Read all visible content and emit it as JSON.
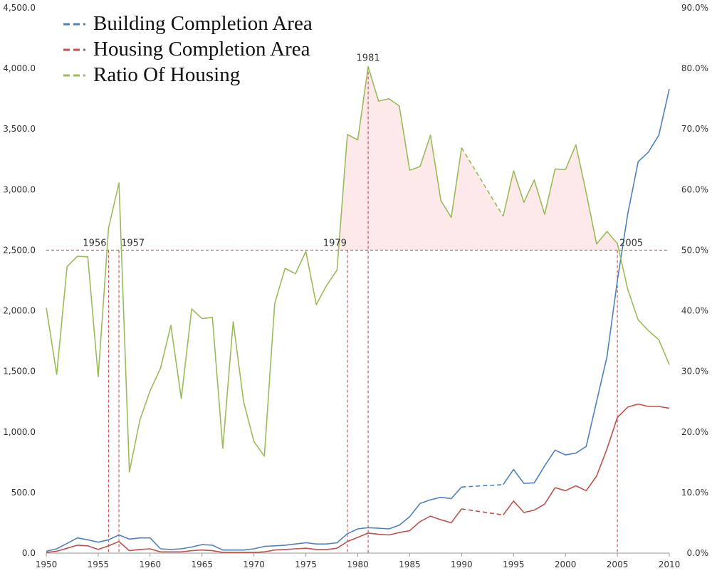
{
  "chart_data": {
    "type": "line",
    "title": "",
    "xlabel": "",
    "ylabel": "",
    "y2label": "",
    "xlim": [
      1950,
      2010
    ],
    "ylim": [
      0,
      4500
    ],
    "y2lim": [
      0,
      90
    ],
    "x_ticks": [
      "1950",
      "1955",
      "1960",
      "1965",
      "1970",
      "1975",
      "1980",
      "1985",
      "1990",
      "1995",
      "2000",
      "2005",
      "2010"
    ],
    "y_ticks": [
      "0.0",
      "500.0",
      "1,000.0",
      "1,500.0",
      "2,000.0",
      "2,500.0",
      "3,000.0",
      "3,500.0",
      "4,000.0",
      "4,500.0"
    ],
    "y2_ticks": [
      "0.0%",
      "10.0%",
      "20.0%",
      "30.0%",
      "40.0%",
      "50.0%",
      "60.0%",
      "70.0%",
      "80.0%",
      "90.0%"
    ],
    "grid": false,
    "legend_position": "top-left",
    "series": [
      {
        "name": "Building Completion Area",
        "axis": "left",
        "color": "#4f81bd",
        "x": [
          1950,
          1951,
          1952,
          1953,
          1954,
          1955,
          1956,
          1957,
          1958,
          1959,
          1960,
          1961,
          1962,
          1963,
          1964,
          1965,
          1966,
          1967,
          1968,
          1969,
          1970,
          1971,
          1972,
          1973,
          1974,
          1975,
          1976,
          1977,
          1978,
          1979,
          1980,
          1981,
          1982,
          1983,
          1984,
          1985,
          1986,
          1987,
          1988,
          1989,
          1990,
          1994,
          1995,
          1996,
          1997,
          1998,
          1999,
          2000,
          2001,
          2002,
          2003,
          2004,
          2005,
          2006,
          2007,
          2008,
          2009,
          2010
        ],
        "y": [
          15,
          35,
          80,
          125,
          110,
          90,
          110,
          150,
          115,
          125,
          125,
          35,
          30,
          35,
          50,
          70,
          65,
          25,
          25,
          25,
          35,
          55,
          60,
          65,
          75,
          85,
          75,
          75,
          85,
          160,
          200,
          210,
          205,
          200,
          230,
          300,
          410,
          440,
          460,
          450,
          545,
          565,
          690,
          575,
          580,
          720,
          850,
          810,
          825,
          880,
          1250,
          1620,
          2250,
          2800,
          3230,
          3310,
          3450,
          3830
        ]
      },
      {
        "name": "Housing Completion Area",
        "axis": "left",
        "color": "#c0504d",
        "x": [
          1950,
          1951,
          1952,
          1953,
          1954,
          1955,
          1956,
          1957,
          1958,
          1959,
          1960,
          1961,
          1962,
          1963,
          1964,
          1965,
          1966,
          1967,
          1968,
          1969,
          1970,
          1971,
          1972,
          1973,
          1974,
          1975,
          1976,
          1977,
          1978,
          1979,
          1980,
          1981,
          1982,
          1983,
          1984,
          1985,
          1986,
          1987,
          1988,
          1989,
          1990,
          1994,
          1995,
          1996,
          1997,
          1998,
          1999,
          2000,
          2001,
          2002,
          2003,
          2004,
          2005,
          2006,
          2007,
          2008,
          2009,
          2010
        ],
        "y": [
          5,
          15,
          40,
          65,
          60,
          30,
          60,
          95,
          20,
          30,
          35,
          10,
          10,
          10,
          20,
          25,
          20,
          5,
          5,
          5,
          5,
          10,
          25,
          30,
          35,
          40,
          30,
          30,
          40,
          95,
          130,
          165,
          155,
          150,
          170,
          185,
          260,
          305,
          275,
          250,
          365,
          315,
          430,
          335,
          355,
          405,
          540,
          515,
          555,
          515,
          635,
          860,
          1120,
          1205,
          1230,
          1210,
          1210,
          1195
        ]
      },
      {
        "name": "Ratio Of Housing",
        "axis": "right",
        "color": "#9bbb59",
        "x": [
          1950,
          1951,
          1952,
          1953,
          1954,
          1955,
          1956,
          1957,
          1958,
          1959,
          1960,
          1961,
          1962,
          1963,
          1964,
          1965,
          1966,
          1967,
          1968,
          1969,
          1970,
          1971,
          1972,
          1973,
          1974,
          1975,
          1976,
          1977,
          1978,
          1979,
          1980,
          1981,
          1982,
          1983,
          1984,
          1985,
          1986,
          1987,
          1988,
          1989,
          1990,
          1994,
          1995,
          1996,
          1997,
          1998,
          1999,
          2000,
          2001,
          2002,
          2003,
          2004,
          2005,
          2006,
          2007,
          2008,
          2009,
          2010
        ],
        "y": [
          40.5,
          29.5,
          47.3,
          49.0,
          48.9,
          29.1,
          53.7,
          61.1,
          13.4,
          21.9,
          26.8,
          30.5,
          37.6,
          25.5,
          40.3,
          38.7,
          38.9,
          17.3,
          38.2,
          25.0,
          18.4,
          16.0,
          41.2,
          47.0,
          46.1,
          49.8,
          41.0,
          44.2,
          46.7,
          69.1,
          68.2,
          80.3,
          74.6,
          75.0,
          73.8,
          63.2,
          63.8,
          69.0,
          58.2,
          55.4,
          66.9,
          55.6,
          63.1,
          57.9,
          61.6,
          55.9,
          63.4,
          63.3,
          67.4,
          59.5,
          51.0,
          53.1,
          51.1,
          43.5,
          38.5,
          36.7,
          35.2,
          31.1
        ]
      }
    ],
    "dashed_segments": [
      "1990-1994"
    ],
    "reference_line": {
      "axis": "right",
      "value": 50
    },
    "annotations": [
      {
        "label": "1956",
        "x": 1956
      },
      {
        "label": "1957",
        "x": 1957
      },
      {
        "label": "1979",
        "x": 1979
      },
      {
        "label": "1981",
        "x": 1981
      },
      {
        "label": "2005",
        "x": 2005
      }
    ]
  }
}
